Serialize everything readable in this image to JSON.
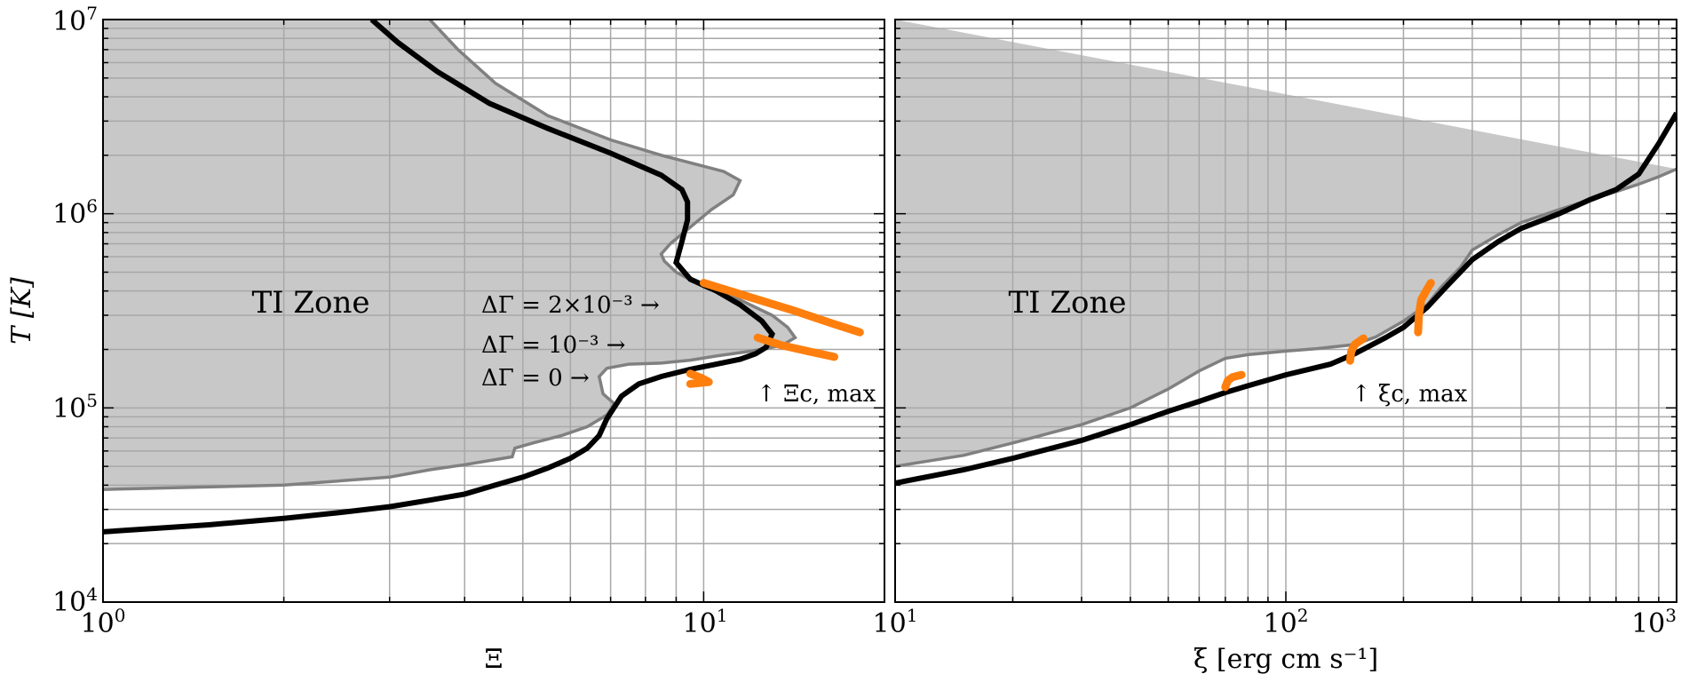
{
  "chart_data": [
    {
      "type": "line",
      "xscale": "log",
      "yscale": "log",
      "xlim": [
        1,
        20
      ],
      "ylim": [
        10000,
        10000000
      ],
      "grid": true,
      "xlabel": "Ξ",
      "ylabel": "T [K]",
      "xticks": [
        {
          "base": "10",
          "exp": "0"
        },
        {
          "base": "10",
          "exp": "1"
        }
      ],
      "yticks": [
        {
          "base": "10",
          "exp": "4"
        },
        {
          "base": "10",
          "exp": "5"
        },
        {
          "base": "10",
          "exp": "6"
        },
        {
          "base": "10",
          "exp": "7"
        }
      ],
      "zone_label": "TI Zone",
      "annotations": {
        "dg2": "ΔΓ = 2×10⁻³ →",
        "dg1": "ΔΓ = 10⁻³ →",
        "dg0": "ΔΓ = 0 →",
        "peak": "↑ Ξc, max"
      },
      "colors": {
        "equilibrium": "#000000",
        "boundary": "#808080",
        "fill": "#c8c8c8",
        "markers": "#ff7f0e"
      },
      "series": [
        {
          "role": "equilibrium",
          "points": [
            [
              1.0,
              23000
            ],
            [
              1.5,
              25000
            ],
            [
              2.0,
              27000
            ],
            [
              2.5,
              29000
            ],
            [
              3.0,
              31000
            ],
            [
              3.5,
              33500
            ],
            [
              4.0,
              36000
            ],
            [
              4.5,
              40000
            ],
            [
              5.0,
              44000
            ],
            [
              5.5,
              49000
            ],
            [
              6.0,
              55000
            ],
            [
              6.4,
              62000
            ],
            [
              6.7,
              72000
            ],
            [
              6.9,
              88000
            ],
            [
              7.3,
              115000
            ],
            [
              7.8,
              133000
            ],
            [
              8.5,
              145000
            ],
            [
              9.5,
              158000
            ],
            [
              10.5,
              168000
            ],
            [
              11.5,
              178000
            ],
            [
              12.2,
              190000
            ],
            [
              12.7,
              205000
            ],
            [
              13.0,
              240000
            ],
            [
              12.5,
              280000
            ],
            [
              11.5,
              340000
            ],
            [
              10.5,
              400000
            ],
            [
              9.5,
              460000
            ],
            [
              9.0,
              560000
            ],
            [
              9.2,
              720000
            ],
            [
              9.4,
              930000
            ],
            [
              9.4,
              1150000
            ],
            [
              9.2,
              1330000
            ],
            [
              8.5,
              1580000
            ],
            [
              7.0,
              2050000
            ],
            [
              5.5,
              2750000
            ],
            [
              4.4,
              3700000
            ],
            [
              3.6,
              5400000
            ],
            [
              3.1,
              7600000
            ],
            [
              2.8,
              10000000
            ]
          ]
        },
        {
          "role": "boundary",
          "points": [
            [
              1.0,
              38000
            ],
            [
              2.0,
              40000
            ],
            [
              3.0,
              44000
            ],
            [
              3.5,
              48000
            ],
            [
              4.0,
              51000
            ],
            [
              4.8,
              56000
            ],
            [
              4.85,
              62000
            ],
            [
              5.2,
              66000
            ],
            [
              5.8,
              72000
            ],
            [
              6.4,
              80000
            ],
            [
              6.9,
              92000
            ],
            [
              7.1,
              105000
            ],
            [
              6.8,
              118000
            ],
            [
              6.7,
              145000
            ],
            [
              6.9,
              160000
            ],
            [
              7.5,
              168000
            ],
            [
              8.5,
              170000
            ],
            [
              9.5,
              176000
            ],
            [
              10.5,
              185000
            ],
            [
              12.0,
              196000
            ],
            [
              13.5,
              210000
            ],
            [
              14.2,
              230000
            ],
            [
              13.8,
              260000
            ],
            [
              13.0,
              300000
            ],
            [
              11.5,
              360000
            ],
            [
              10.0,
              420000
            ],
            [
              9.0,
              500000
            ],
            [
              8.6,
              570000
            ],
            [
              8.5,
              620000
            ],
            [
              8.8,
              700000
            ],
            [
              9.4,
              830000
            ],
            [
              10.3,
              1050000
            ],
            [
              11.2,
              1250000
            ],
            [
              11.5,
              1480000
            ],
            [
              10.8,
              1650000
            ],
            [
              8.5,
              2000000
            ],
            [
              7.0,
              2400000
            ],
            [
              5.5,
              3200000
            ],
            [
              4.5,
              4700000
            ],
            [
              3.9,
              7000000
            ],
            [
              3.5,
              10000000
            ]
          ]
        },
        {
          "role": "marker",
          "points": [
            [
              10.0,
              440000
            ],
            [
              12.0,
              370000
            ],
            [
              14.0,
              320000
            ],
            [
              16.5,
              270000
            ],
            [
              18.2,
              245000
            ]
          ]
        },
        {
          "role": "marker",
          "points": [
            [
              12.3,
              230000
            ],
            [
              13.5,
              210000
            ],
            [
              15.0,
              195000
            ],
            [
              16.5,
              183000
            ]
          ]
        },
        {
          "role": "marker",
          "points": [
            [
              9.5,
              150000
            ],
            [
              9.9,
              143000
            ],
            [
              10.2,
              136000
            ],
            [
              9.5,
              133000
            ]
          ]
        }
      ]
    },
    {
      "type": "line",
      "xscale": "log",
      "yscale": "log",
      "xlim": [
        10,
        1000
      ],
      "ylim": [
        10000,
        10000000
      ],
      "grid": true,
      "xlabel": "ξ  [erg cm s⁻¹]",
      "xticks": [
        {
          "base": "10",
          "exp": "1"
        },
        {
          "base": "10",
          "exp": "2"
        },
        {
          "base": "10",
          "exp": "3"
        }
      ],
      "zone_label": "TI Zone",
      "annotations": {
        "peak": "↑ ξc, max"
      },
      "colors": {
        "equilibrium": "#000000",
        "boundary": "#808080",
        "fill": "#c8c8c8",
        "markers": "#ff7f0e"
      },
      "series": [
        {
          "role": "equilibrium",
          "points": [
            [
              10,
              41000
            ],
            [
              15,
              48000
            ],
            [
              20,
              55000
            ],
            [
              30,
              68000
            ],
            [
              40,
              82000
            ],
            [
              50,
              96000
            ],
            [
              60,
              108000
            ],
            [
              70,
              120000
            ],
            [
              80,
              130000
            ],
            [
              100,
              148000
            ],
            [
              130,
              168000
            ],
            [
              150,
              190000
            ],
            [
              180,
              230000
            ],
            [
              200,
              260000
            ],
            [
              230,
              330000
            ],
            [
              260,
              430000
            ],
            [
              300,
              580000
            ],
            [
              350,
              720000
            ],
            [
              400,
              840000
            ],
            [
              500,
              1000000
            ],
            [
              600,
              1180000
            ],
            [
              700,
              1330000
            ],
            [
              800,
              1600000
            ],
            [
              900,
              2300000
            ],
            [
              1000,
              3300000
            ]
          ]
        },
        {
          "role": "boundary",
          "points": [
            [
              10,
              50000
            ],
            [
              15,
              57000
            ],
            [
              20,
              66000
            ],
            [
              30,
              82000
            ],
            [
              40,
              100000
            ],
            [
              50,
              125000
            ],
            [
              60,
              155000
            ],
            [
              70,
              180000
            ],
            [
              80,
              188000
            ],
            [
              100,
              196000
            ],
            [
              120,
              202000
            ],
            [
              150,
              212000
            ],
            [
              170,
              232000
            ],
            [
              200,
              280000
            ],
            [
              230,
              340000
            ],
            [
              250,
              420000
            ],
            [
              280,
              530000
            ],
            [
              300,
              650000
            ],
            [
              350,
              780000
            ],
            [
              400,
              900000
            ],
            [
              500,
              1050000
            ],
            [
              600,
              1180000
            ],
            [
              700,
              1300000
            ],
            [
              800,
              1420000
            ],
            [
              900,
              1550000
            ],
            [
              1000,
              1700000
            ]
          ]
        },
        {
          "role": "marker",
          "points": [
            [
              70,
              128000
            ],
            [
              71,
              138000
            ],
            [
              73,
              144000
            ],
            [
              77,
              148000
            ]
          ]
        },
        {
          "role": "marker",
          "points": [
            [
              146,
              175000
            ],
            [
              147,
              195000
            ],
            [
              150,
              212000
            ],
            [
              158,
              228000
            ]
          ]
        },
        {
          "role": "marker",
          "points": [
            [
              218,
              245000
            ],
            [
              219,
              300000
            ],
            [
              222,
              360000
            ],
            [
              230,
              410000
            ],
            [
              235,
              440000
            ]
          ]
        }
      ]
    }
  ]
}
